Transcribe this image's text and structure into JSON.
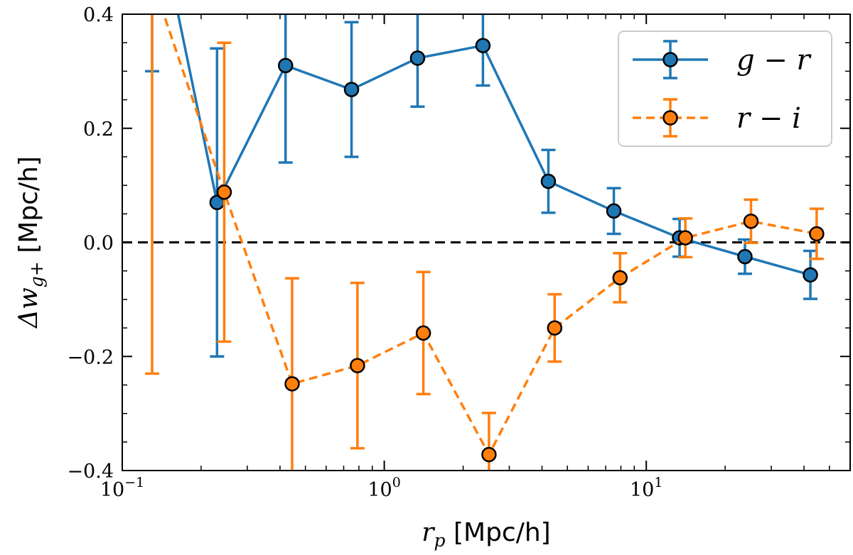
{
  "chart_data": {
    "type": "line",
    "title": "",
    "x_scale": "log",
    "xlim": [
      0.1,
      60
    ],
    "ylim": [
      -0.4,
      0.4
    ],
    "x_ticks": [
      {
        "value": 0.1,
        "base": "10",
        "exp": "−1"
      },
      {
        "value": 1,
        "base": "10",
        "exp": "0"
      },
      {
        "value": 10,
        "base": "10",
        "exp": "1"
      }
    ],
    "y_ticks": [
      {
        "value": -0.4,
        "label": "−0.4"
      },
      {
        "value": -0.2,
        "label": "−0.2"
      },
      {
        "value": 0.0,
        "label": "0.0"
      },
      {
        "value": 0.2,
        "label": "0.2"
      },
      {
        "value": 0.4,
        "label": "0.4"
      }
    ],
    "xlabel": {
      "math": "r",
      "sub": "p",
      "text": " [Mpc/h]"
    },
    "ylabel": {
      "math": "Δw",
      "sub": "g+",
      "text": " [Mpc/h]"
    },
    "reference_line": {
      "y": 0,
      "style": "dashed",
      "color": "#000000"
    },
    "legend": {
      "position": "top-right"
    },
    "series": [
      {
        "name": "g − r",
        "color": "#1f77b4",
        "linestyle": "solid",
        "x": [
          0.13,
          0.23,
          0.42,
          0.75,
          1.34,
          2.38,
          4.23,
          7.52,
          13.4,
          23.8,
          42.3
        ],
        "y": [
          0.62,
          0.07,
          0.31,
          0.268,
          0.323,
          0.345,
          0.107,
          0.055,
          0.008,
          -0.025,
          -0.057
        ],
        "yerr": [
          0.32,
          0.27,
          0.17,
          0.118,
          0.085,
          0.07,
          0.055,
          0.04,
          0.033,
          0.03,
          0.042
        ]
      },
      {
        "name": "r − i",
        "color": "#ff7f0e",
        "linestyle": "dashed",
        "x": [
          0.13,
          0.245,
          0.445,
          0.79,
          1.41,
          2.51,
          4.47,
          7.94,
          14.1,
          25.1,
          44.7
        ],
        "y": [
          0.46,
          0.088,
          -0.248,
          -0.216,
          -0.159,
          -0.372,
          -0.15,
          -0.062,
          0.008,
          0.037,
          0.015
        ],
        "yerr": [
          0.69,
          0.262,
          0.185,
          0.145,
          0.107,
          0.073,
          0.059,
          0.043,
          0.034,
          0.038,
          0.044
        ]
      }
    ]
  }
}
